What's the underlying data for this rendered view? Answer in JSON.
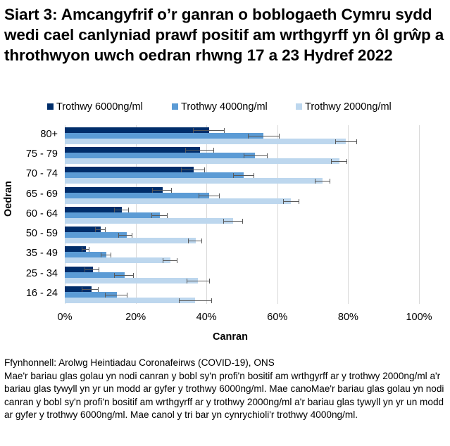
{
  "title": "Siart 3: Amcangyfrif o’r ganran o boblogaeth Cymru sydd wedi cael canlyniad prawf positif am wrthgyrff yn ôl grŵp  a throthwyon uwch oedran rhwng 17 a 23 Hydref 2022",
  "legend": [
    {
      "label": "Trothwy 6000ng/ml",
      "color": "#002D6A"
    },
    {
      "label": "Trothwy 4000ng/ml",
      "color": "#5B9BD5"
    },
    {
      "label": "Trothwy 2000ng/ml",
      "color": "#BDD7EE"
    }
  ],
  "axes": {
    "x_title": "Canran",
    "y_title": "Oedran",
    "x_ticks": [
      "0%",
      "20%",
      "40%",
      "60%",
      "80%",
      "100%"
    ]
  },
  "footer": {
    "source": "Ffynhonnell: Arolwg Heintiadau Coronafeirws (COVID-19), ONS",
    "note": "Mae'r bariau glas golau yn nodi canran y bobl sy'n profi'n bositif am wrthgyrff ar y trothwy 2000ng/ml a'r bariau glas tywyll yn yr un modd ar gyfer y trothwy 6000ng/ml. Mae canoMae'r bariau glas golau yn nodi canran y bobl sy'n profi'n bositif am wrthgyrff ar y trothwy 2000ng/ml a'r bariau glas tywyll yn yr un modd ar gyfer y trothwy 6000ng/ml. Mae canol y tri bar yn cynrychioli'r trothwy 4000ng/ml."
  },
  "colors": {
    "dark": "#002D6A",
    "medium": "#5B9BD5",
    "light": "#BDD7EE",
    "grid": "#D9D9D9",
    "errorbar": "#595959"
  },
  "chart_data": {
    "type": "bar",
    "orientation": "horizontal",
    "title": "Siart 3: Amcangyfrif o’r ganran o boblogaeth Cymru sydd wedi cael canlyniad prawf positif am wrthgyrff yn ôl grŵp  a throthwyon uwch oedran rhwng 17 a 23 Hydref 2022",
    "xlabel": "Canran",
    "ylabel": "Oedran",
    "xlim": [
      0,
      100
    ],
    "x_ticks": [
      "0%",
      "20%",
      "40%",
      "60%",
      "80%",
      "100%"
    ],
    "grid": true,
    "legend_position": "top",
    "categories": [
      "80+",
      "75 - 79",
      "70 - 74",
      "65 - 69",
      "60 - 64",
      "50 - 59",
      "35 - 49",
      "25 - 34",
      "16 - 24"
    ],
    "series": [
      {
        "name": "Trothwy 6000ng/ml",
        "color": "#002D6A",
        "values": [
          40.8,
          38.2,
          36.4,
          27.6,
          16.1,
          10.1,
          6.0,
          7.9,
          7.5
        ],
        "lower": [
          36.2,
          34.0,
          32.8,
          24.6,
          13.9,
          8.5,
          4.8,
          5.5,
          4.8
        ],
        "upper": [
          45.1,
          42.2,
          39.6,
          30.2,
          18.0,
          11.6,
          7.0,
          9.8,
          9.6
        ]
      },
      {
        "name": "Trothwy 4000ng/ml",
        "color": "#5B9BD5",
        "values": [
          56.1,
          53.7,
          50.5,
          40.8,
          26.8,
          17.5,
          11.8,
          16.8,
          14.8
        ],
        "lower": [
          51.7,
          50.4,
          47.6,
          37.8,
          24.5,
          15.2,
          10.2,
          14.0,
          11.3
        ],
        "upper": [
          60.6,
          57.2,
          53.5,
          43.8,
          29.0,
          19.0,
          13.1,
          19.5,
          17.6
        ]
      },
      {
        "name": "Trothwy 2000ng/ml",
        "color": "#BDD7EE",
        "values": [
          79.3,
          77.5,
          72.8,
          63.8,
          47.5,
          37.0,
          29.9,
          37.6,
          36.7
        ],
        "lower": [
          76.3,
          75.2,
          70.6,
          61.6,
          44.8,
          34.7,
          27.6,
          34.3,
          32.3
        ],
        "upper": [
          82.5,
          79.8,
          75.0,
          66.3,
          50.2,
          38.8,
          31.9,
          40.9,
          41.6
        ]
      }
    ]
  }
}
